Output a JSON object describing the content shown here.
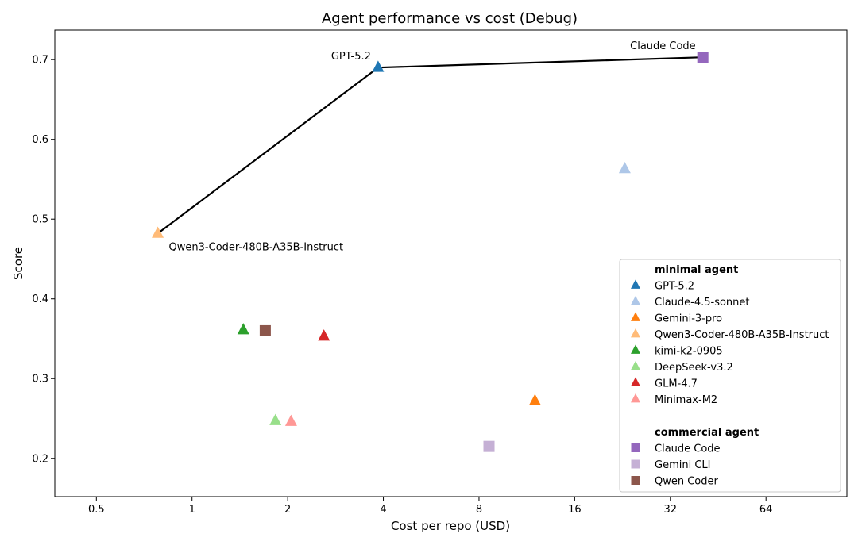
{
  "chart_data": {
    "type": "scatter",
    "title": "Agent performance vs cost (Debug)",
    "xlabel": "Cost per repo (USD)",
    "ylabel": "Score",
    "xscale": "log2",
    "xlim": [
      0.37,
      115
    ],
    "ylim": [
      0.152,
      0.737
    ],
    "xticks": [
      {
        "value": 0.5,
        "label": "0.5"
      },
      {
        "value": 1,
        "label": "1"
      },
      {
        "value": 2,
        "label": "2"
      },
      {
        "value": 4,
        "label": "4"
      },
      {
        "value": 8,
        "label": "8"
      },
      {
        "value": 16,
        "label": "16"
      },
      {
        "value": 32,
        "label": "32"
      },
      {
        "value": 64,
        "label": "64"
      }
    ],
    "yticks": [
      {
        "value": 0.2,
        "label": "0.2"
      },
      {
        "value": 0.3,
        "label": "0.3"
      },
      {
        "value": 0.4,
        "label": "0.4"
      },
      {
        "value": 0.5,
        "label": "0.5"
      },
      {
        "value": 0.6,
        "label": "0.6"
      },
      {
        "value": 0.7,
        "label": "0.7"
      }
    ],
    "grid": false,
    "legend_position": "lower-right",
    "groups": [
      {
        "name": "minimal agent",
        "marker": "triangle",
        "series": [
          {
            "name": "GPT-5.2",
            "color": "#1f77b4",
            "x": 3.85,
            "y": 0.69
          },
          {
            "name": "Claude-4.5-sonnet",
            "color": "#aec7e8",
            "x": 23.0,
            "y": 0.563
          },
          {
            "name": "Gemini-3-pro",
            "color": "#ff7f0e",
            "x": 12.0,
            "y": 0.272
          },
          {
            "name": "Qwen3-Coder-480B-A35B-Instruct",
            "color": "#ffbb78",
            "x": 0.78,
            "y": 0.482
          },
          {
            "name": "kimi-k2-0905",
            "color": "#2ca02c",
            "x": 1.45,
            "y": 0.361
          },
          {
            "name": "DeepSeek-v3.2",
            "color": "#98df8a",
            "x": 1.83,
            "y": 0.247
          },
          {
            "name": "GLM-4.7",
            "color": "#d62728",
            "x": 2.6,
            "y": 0.353
          },
          {
            "name": "Minimax-M2",
            "color": "#ff9896",
            "x": 2.05,
            "y": 0.246
          }
        ]
      },
      {
        "name": "commercial agent",
        "marker": "square",
        "series": [
          {
            "name": "Claude Code",
            "color": "#9467bd",
            "x": 40.5,
            "y": 0.703
          },
          {
            "name": "Gemini CLI",
            "color": "#c5b0d5",
            "x": 8.6,
            "y": 0.215
          },
          {
            "name": "Qwen Coder",
            "color": "#8c564b",
            "x": 1.7,
            "y": 0.36
          }
        ]
      }
    ],
    "frontier": {
      "color": "#000000",
      "points": [
        {
          "x": 0.78,
          "y": 0.482
        },
        {
          "x": 3.85,
          "y": 0.69
        },
        {
          "x": 40.5,
          "y": 0.703
        }
      ]
    },
    "annotations": [
      {
        "text": "Qwen3-Coder-480B-A35B-Instruct",
        "x": 0.78,
        "y": 0.482,
        "placement": "below-right"
      },
      {
        "text": "GPT-5.2",
        "x": 3.85,
        "y": 0.69,
        "placement": "above-left"
      },
      {
        "text": "Claude Code",
        "x": 40.5,
        "y": 0.703,
        "placement": "above-left"
      }
    ]
  }
}
